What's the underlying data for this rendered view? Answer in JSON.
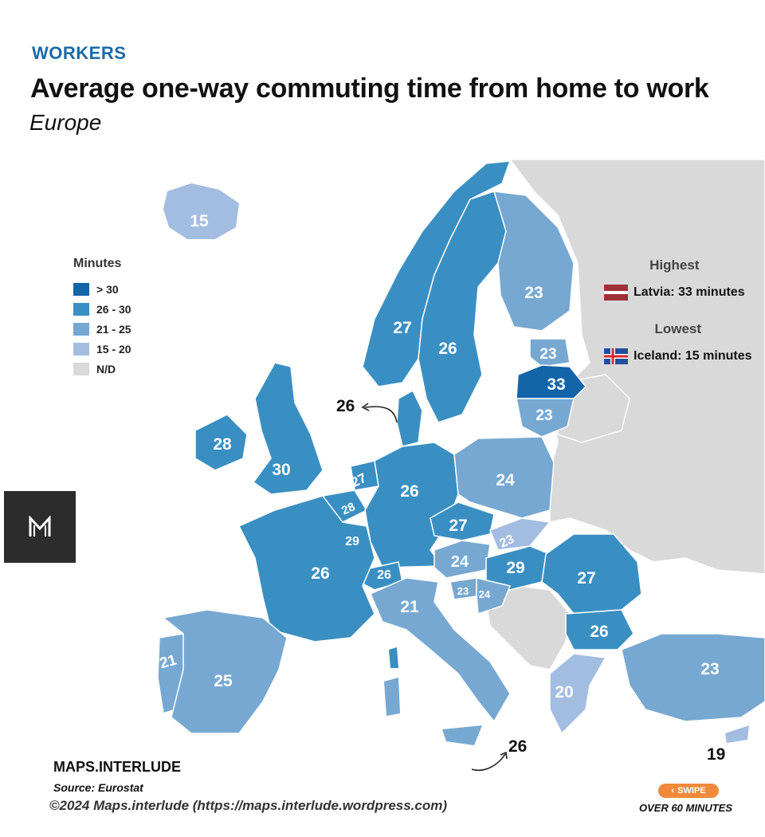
{
  "header": {
    "kicker": "WORKERS",
    "title": "Average one-way commuting time from home to work",
    "subtitle": "Europe"
  },
  "colors": {
    "over_30": "#1464a8",
    "range_26_30": "#3a8fc2",
    "range_21_25": "#77a8d2",
    "range_15_20": "#a3bde0",
    "no_data": "#d9d9d9",
    "kicker": "#1a6aa8",
    "label_on_map": "#ffffff"
  },
  "legend": {
    "title": "Minutes",
    "items": [
      {
        "label": "> 30",
        "color": "#1464a8"
      },
      {
        "label": "26 - 30",
        "color": "#3a8fc2"
      },
      {
        "label": "21 - 25",
        "color": "#77a8d2"
      },
      {
        "label": "15 - 20",
        "color": "#a3bde0"
      },
      {
        "label": "N/D",
        "color": "#d9d9d9"
      }
    ]
  },
  "highlights": {
    "highest_label": "Highest",
    "highest_value": "Latvia: 33 minutes",
    "lowest_label": "Lowest",
    "lowest_value": "Iceland: 15 minutes"
  },
  "map_values": {
    "iceland": "15",
    "norway": "27",
    "sweden": "26",
    "finland": "23",
    "estonia": "23",
    "latvia": "33",
    "lithuania": "23",
    "denmark": "26",
    "ireland": "28",
    "uk": "30",
    "netherlands": "27",
    "belgium": "28",
    "luxembourg": "29",
    "germany": "26",
    "poland": "24",
    "czechia": "27",
    "slovakia": "23",
    "austria": "24",
    "hungary": "29",
    "switzerland": "26",
    "france": "26",
    "slovenia": "23",
    "croatia": "24",
    "romania": "27",
    "bulgaria": "26",
    "italy": "21",
    "portugal": "21",
    "spain": "25",
    "greece": "20",
    "turkey": "23",
    "malta": "26",
    "cyprus": "19"
  },
  "footer": {
    "brand": "MAPS.INTERLUDE",
    "source": "Source: Eurostat",
    "copyright": "©2024 Maps.interlude (https://maps.interlude.wordpress.com)",
    "swipe": "SWIPE",
    "next": "OVER 60 MINUTES"
  }
}
